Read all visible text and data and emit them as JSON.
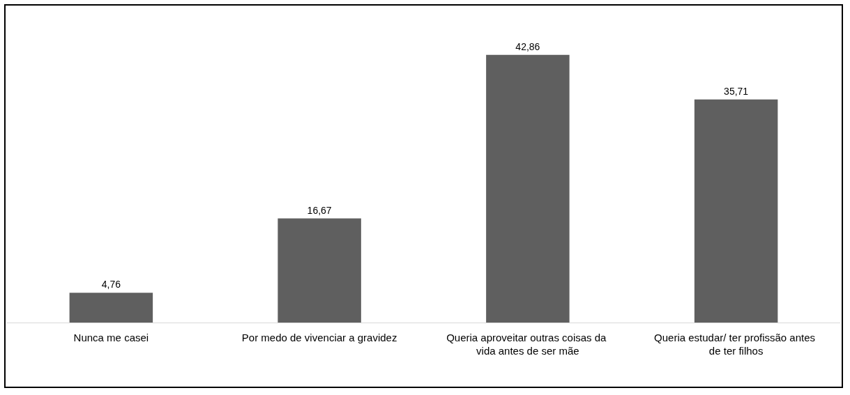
{
  "chart_data": {
    "type": "bar",
    "categories": [
      "Nunca me casei",
      "Por medo de vivenciar a gravidez",
      "Queria aproveitar outras coisas da vida antes de ser mãe",
      "Queria estudar/ ter profissão antes de ter filhos"
    ],
    "values": [
      4.76,
      16.67,
      42.86,
      35.71
    ],
    "value_labels": [
      "4,76",
      "16,67",
      "42,86",
      "35,71"
    ],
    "color": "#5f5f5f",
    "grid": false
  }
}
